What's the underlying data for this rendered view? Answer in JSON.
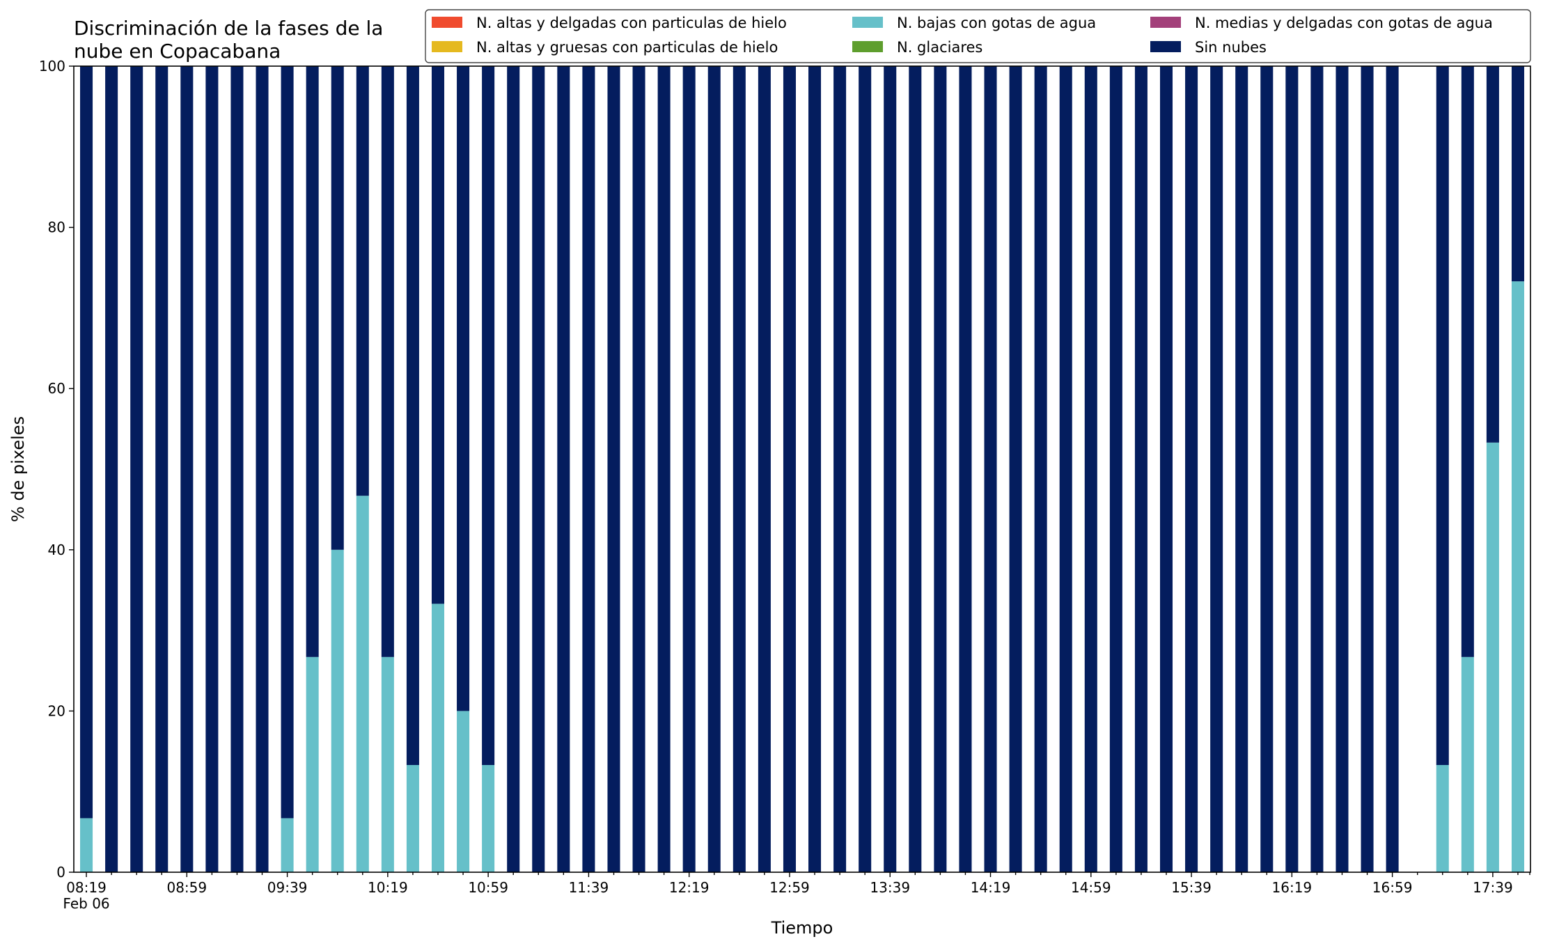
{
  "chart_data": {
    "type": "bar",
    "stacked": true,
    "title_lines": [
      "Discriminación de la fases de la",
      "nube en Copacabana"
    ],
    "xlabel": "Tiempo",
    "ylabel": "% de pixeles",
    "ylim": [
      0,
      100
    ],
    "yticks": [
      0,
      20,
      40,
      60,
      80,
      100
    ],
    "x_date_label": "Feb 06",
    "x_times": [
      "08:19",
      "08:29",
      "08:39",
      "08:49",
      "08:59",
      "09:09",
      "09:19",
      "09:29",
      "09:39",
      "09:49",
      "09:59",
      "10:09",
      "10:19",
      "10:29",
      "10:39",
      "10:49",
      "10:59",
      "11:09",
      "11:19",
      "11:29",
      "11:39",
      "11:49",
      "11:59",
      "12:09",
      "12:19",
      "12:29",
      "12:39",
      "12:49",
      "12:59",
      "13:09",
      "13:19",
      "13:29",
      "13:39",
      "13:49",
      "13:59",
      "14:09",
      "14:19",
      "14:29",
      "14:39",
      "14:49",
      "14:59",
      "15:09",
      "15:19",
      "15:29",
      "15:39",
      "15:49",
      "15:59",
      "16:09",
      "16:19",
      "16:29",
      "16:39",
      "16:49",
      "16:59",
      "17:09",
      "17:19",
      "17:29",
      "17:39",
      "17:49"
    ],
    "x_ticklabels": [
      "08:19",
      "08:59",
      "09:39",
      "10:19",
      "10:59",
      "11:39",
      "12:19",
      "12:59",
      "13:39",
      "14:19",
      "14:59",
      "15:39",
      "16:19",
      "16:59",
      "17:39"
    ],
    "series": [
      {
        "name": "N. altas y delgadas con particulas de hielo",
        "color": "#f04b2e",
        "values": [
          0,
          0,
          0,
          0,
          0,
          0,
          0,
          0,
          0,
          0,
          0,
          0,
          0,
          0,
          0,
          0,
          0,
          0,
          0,
          0,
          0,
          0,
          0,
          0,
          0,
          0,
          0,
          0,
          0,
          0,
          0,
          0,
          0,
          0,
          0,
          0,
          0,
          0,
          0,
          0,
          0,
          0,
          0,
          0,
          0,
          0,
          0,
          0,
          0,
          0,
          0,
          0,
          0,
          null,
          0,
          0,
          0,
          0
        ]
      },
      {
        "name": "N. altas y gruesas con particulas de hielo",
        "color": "#e5b91f",
        "values": [
          0,
          0,
          0,
          0,
          0,
          0,
          0,
          0,
          0,
          0,
          0,
          0,
          0,
          0,
          0,
          0,
          0,
          0,
          0,
          0,
          0,
          0,
          0,
          0,
          0,
          0,
          0,
          0,
          0,
          0,
          0,
          0,
          0,
          0,
          0,
          0,
          0,
          0,
          0,
          0,
          0,
          0,
          0,
          0,
          0,
          0,
          0,
          0,
          0,
          0,
          0,
          0,
          0,
          null,
          0,
          0,
          0,
          0
        ]
      },
      {
        "name": "N. bajas con gotas de agua",
        "color": "#66c0c9",
        "values": [
          6.7,
          0,
          0,
          0,
          0,
          0,
          0,
          0,
          6.7,
          26.7,
          40,
          46.7,
          26.7,
          13.3,
          33.3,
          20,
          13.3,
          0,
          0,
          0,
          0,
          0,
          0,
          0,
          0,
          0,
          0,
          0,
          0,
          0,
          0,
          0,
          0,
          0,
          0,
          0,
          0,
          0,
          0,
          0,
          0,
          0,
          0,
          0,
          0,
          0,
          0,
          0,
          0,
          0,
          0,
          0,
          0,
          null,
          13.3,
          26.7,
          53.3,
          73.3
        ]
      },
      {
        "name": "N. glaciares",
        "color": "#5e9e2d",
        "values": [
          0,
          0,
          0,
          0,
          0,
          0,
          0,
          0,
          0,
          0,
          0,
          0,
          0,
          0,
          0,
          0,
          0,
          0,
          0,
          0,
          0,
          0,
          0,
          0,
          0,
          0,
          0,
          0,
          0,
          0,
          0,
          0,
          0,
          0,
          0,
          0,
          0,
          0,
          0,
          0,
          0,
          0,
          0,
          0,
          0,
          0,
          0,
          0,
          0,
          0,
          0,
          0,
          0,
          null,
          0,
          0,
          0,
          0
        ]
      },
      {
        "name": "N. medias y delgadas con gotas de agua",
        "color": "#a3407a",
        "values": [
          0,
          0,
          0,
          0,
          0,
          0,
          0,
          0,
          0,
          0,
          0,
          0,
          0,
          0,
          0,
          0,
          0,
          0,
          0,
          0,
          0,
          0,
          0,
          0,
          0,
          0,
          0,
          0,
          0,
          0,
          0,
          0,
          0,
          0,
          0,
          0,
          0,
          0,
          0,
          0,
          0,
          0,
          0,
          0,
          0,
          0,
          0,
          0,
          0,
          0,
          0,
          0,
          0,
          null,
          0,
          0,
          0,
          0
        ]
      },
      {
        "name": "Sin nubes",
        "color": "#041d5e",
        "values": [
          93.3,
          100,
          100,
          100,
          100,
          100,
          100,
          100,
          93.3,
          73.3,
          60,
          53.3,
          73.3,
          86.7,
          66.7,
          80,
          86.7,
          100,
          100,
          100,
          100,
          100,
          100,
          100,
          100,
          100,
          100,
          100,
          100,
          100,
          100,
          100,
          100,
          100,
          100,
          100,
          100,
          100,
          100,
          100,
          100,
          100,
          100,
          100,
          100,
          100,
          100,
          100,
          100,
          100,
          100,
          100,
          100,
          null,
          86.7,
          73.3,
          46.7,
          26.7
        ]
      }
    ],
    "legend": {
      "placement": "top-right",
      "ncol": 3
    },
    "grid": false
  }
}
